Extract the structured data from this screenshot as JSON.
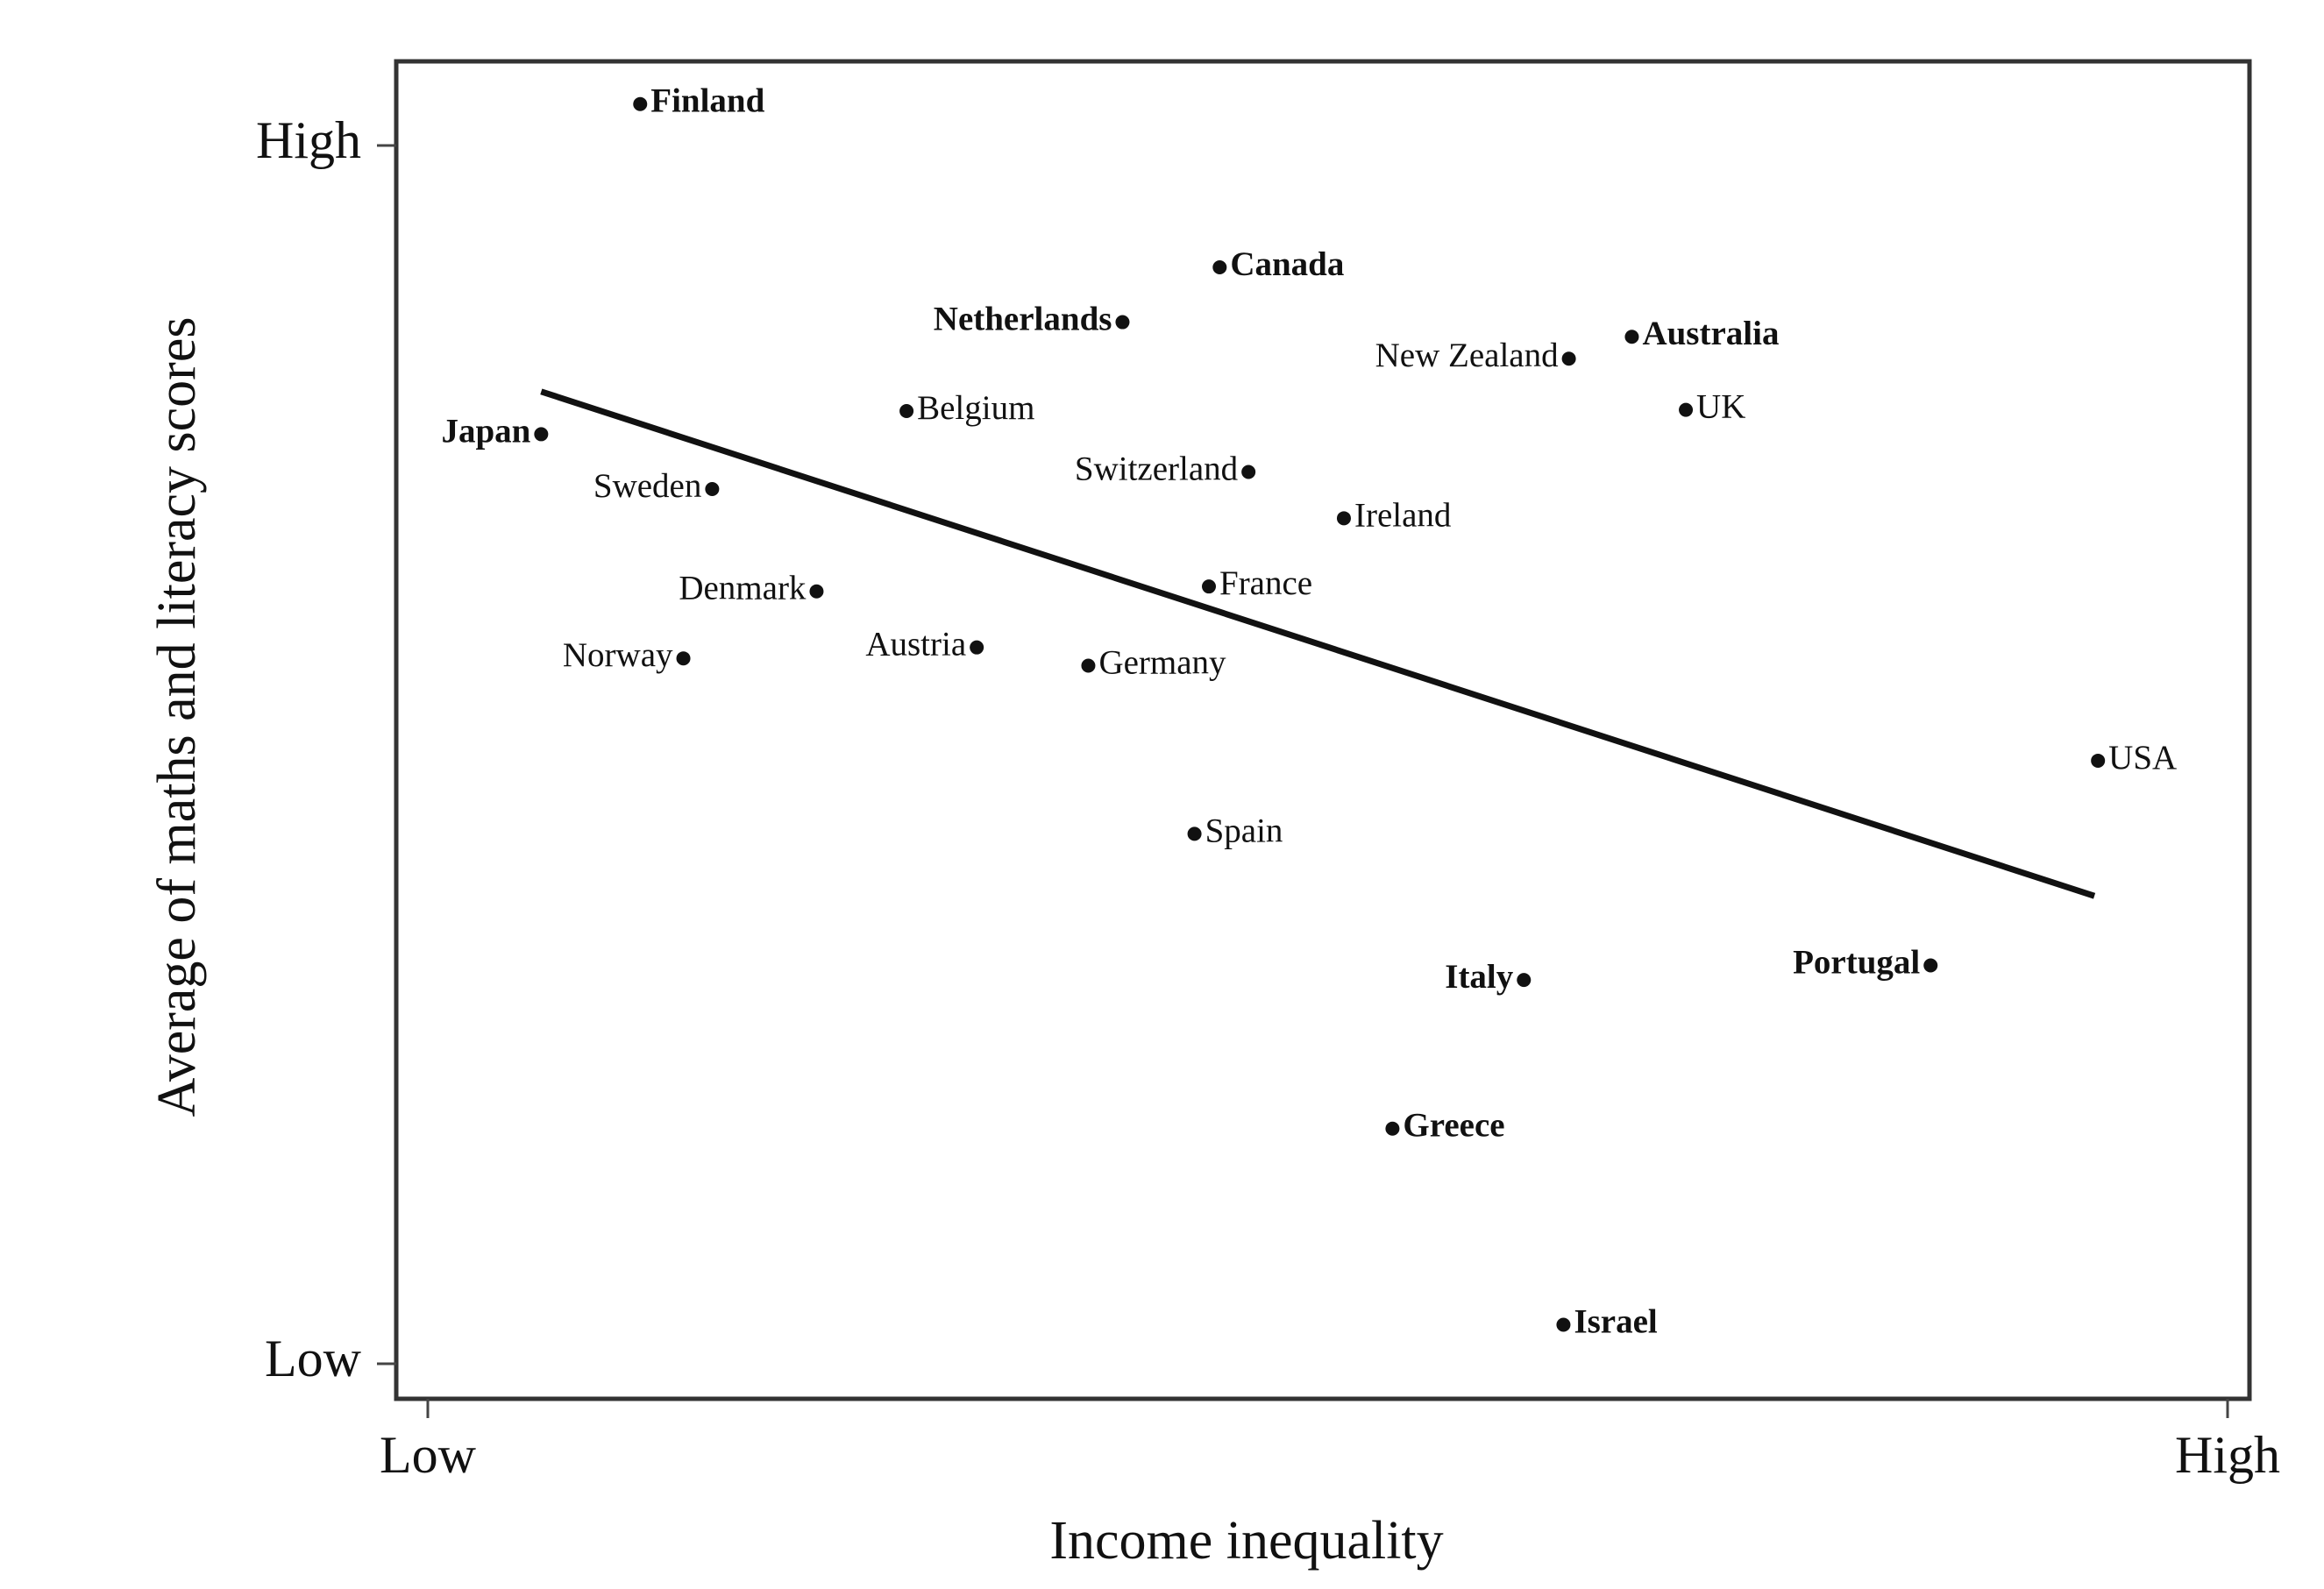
{
  "chart_data": {
    "type": "scatter",
    "title": "",
    "xlabel": "Income inequality",
    "ylabel": "Average of maths and literacy scores",
    "x_ticks": [
      "Low",
      "High"
    ],
    "y_ticks": [
      "High",
      "Low"
    ],
    "xlim": [
      0,
      100
    ],
    "ylim": [
      0,
      100
    ],
    "grid": false,
    "legend": "none",
    "points": [
      {
        "label": "Finland",
        "x": 11.8,
        "y": 103.4,
        "label_side": "right"
      },
      {
        "label": "Canada",
        "x": 44.0,
        "y": 90.0,
        "label_side": "right"
      },
      {
        "label": "Netherlands",
        "x": 38.6,
        "y": 85.5,
        "label_side": "left"
      },
      {
        "label": "Australia",
        "x": 66.9,
        "y": 84.3,
        "label_side": "right"
      },
      {
        "label": "New Zealand",
        "x": 63.4,
        "y": 82.5,
        "label_side": "left"
      },
      {
        "label": "Belgium",
        "x": 26.6,
        "y": 78.2,
        "label_side": "right"
      },
      {
        "label": "UK",
        "x": 69.9,
        "y": 78.3,
        "label_side": "right"
      },
      {
        "label": "Japan",
        "x": 6.3,
        "y": 76.3,
        "label_side": "left"
      },
      {
        "label": "Sweden",
        "x": 15.8,
        "y": 71.8,
        "label_side": "left"
      },
      {
        "label": "Switzerland",
        "x": 45.6,
        "y": 73.2,
        "label_side": "left"
      },
      {
        "label": "Ireland",
        "x": 50.9,
        "y": 69.4,
        "label_side": "right"
      },
      {
        "label": "Denmark",
        "x": 21.6,
        "y": 63.4,
        "label_side": "left"
      },
      {
        "label": "France",
        "x": 43.4,
        "y": 63.8,
        "label_side": "right"
      },
      {
        "label": "Austria",
        "x": 30.5,
        "y": 58.8,
        "label_side": "left"
      },
      {
        "label": "Norway",
        "x": 14.2,
        "y": 57.9,
        "label_side": "left"
      },
      {
        "label": "Germany",
        "x": 36.7,
        "y": 57.3,
        "label_side": "right"
      },
      {
        "label": "USA",
        "x": 92.8,
        "y": 49.5,
        "label_side": "right"
      },
      {
        "label": "Spain",
        "x": 42.6,
        "y": 43.5,
        "label_side": "right"
      },
      {
        "label": "Italy",
        "x": 60.9,
        "y": 31.5,
        "label_side": "left"
      },
      {
        "label": "Portugal",
        "x": 83.5,
        "y": 32.7,
        "label_side": "left"
      },
      {
        "label": "Greece",
        "x": 53.6,
        "y": 19.3,
        "label_side": "right"
      },
      {
        "label": "Israel",
        "x": 63.1,
        "y": 3.2,
        "label_side": "right"
      }
    ],
    "trendline": {
      "x": [
        6.3,
        92.6
      ],
      "y": [
        79.8,
        38.4
      ]
    }
  }
}
